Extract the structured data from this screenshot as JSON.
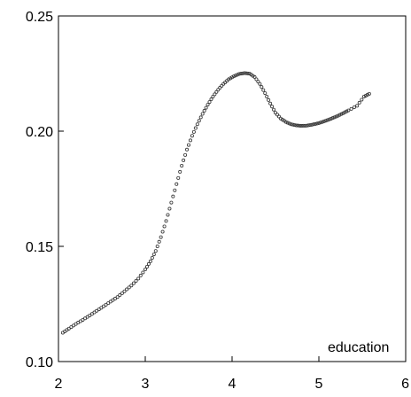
{
  "chart_data": {
    "type": "scatter",
    "title": "",
    "xlabel": "",
    "ylabel": "",
    "annotation": "education",
    "xlim": [
      2,
      6
    ],
    "ylim": [
      0.1,
      0.25
    ],
    "x_ticks": [
      "2",
      "3",
      "4",
      "5",
      "6"
    ],
    "y_ticks": [
      "0.10",
      "0.15",
      "0.20",
      "0.25"
    ],
    "grid": false,
    "series": [
      {
        "x": [
          2.05,
          2.12,
          2.2,
          2.28,
          2.36,
          2.44,
          2.52,
          2.6,
          2.68,
          2.76,
          2.84,
          2.92,
          3.0,
          3.06,
          3.12,
          3.18,
          3.24,
          3.3,
          3.36,
          3.42,
          3.48,
          3.54,
          3.6,
          3.66,
          3.72,
          3.78,
          3.84,
          3.9,
          3.96,
          4.02,
          4.08,
          4.14,
          4.2,
          4.26,
          4.32,
          4.38,
          4.44,
          4.5,
          4.56,
          4.62,
          4.68,
          4.74,
          4.8,
          4.86,
          4.92,
          4.98,
          5.04,
          5.1,
          5.16,
          5.22,
          5.28,
          5.34,
          5.44,
          5.52,
          5.58
        ],
        "y": [
          0.1125,
          0.1143,
          0.1163,
          0.1181,
          0.12,
          0.122,
          0.124,
          0.126,
          0.128,
          0.1305,
          0.133,
          0.136,
          0.14,
          0.1435,
          0.148,
          0.154,
          0.161,
          0.169,
          0.177,
          0.185,
          0.192,
          0.198,
          0.203,
          0.2075,
          0.2115,
          0.215,
          0.218,
          0.2205,
          0.2225,
          0.2238,
          0.2248,
          0.2252,
          0.225,
          0.2235,
          0.2205,
          0.2165,
          0.212,
          0.208,
          0.2055,
          0.204,
          0.203,
          0.2025,
          0.2023,
          0.2024,
          0.2028,
          0.2033,
          0.204,
          0.2048,
          0.2057,
          0.2067,
          0.2078,
          0.209,
          0.211,
          0.215,
          0.2162
        ]
      }
    ]
  }
}
